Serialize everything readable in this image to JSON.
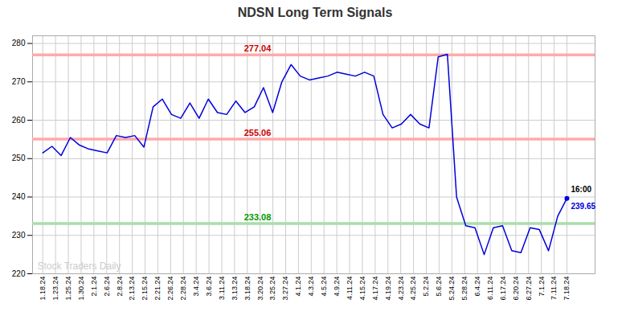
{
  "chart_data": {
    "type": "line",
    "title": "NDSN Long Term Signals",
    "title_color": "#333333",
    "color": "#0000dd",
    "marker": "last",
    "grid": true,
    "x": [
      0,
      0.7193,
      1.4386,
      2.1579,
      2.8772,
      3.5965,
      4.3158,
      5.0351,
      5.7544,
      6.4737,
      7.193,
      7.9123,
      8.6316,
      9.3509,
      10.0702,
      10.7895,
      11.5088,
      12.2281,
      12.9474,
      13.6667,
      14.386,
      15.1053,
      15.8246,
      16.5439,
      17.2632,
      17.9825,
      18.7018,
      19.4211,
      20.1404,
      20.8596,
      21.5789,
      22.2982,
      23.0175,
      23.7368,
      24.4561,
      25.1754,
      25.8947,
      26.614,
      27.3333,
      28.0526,
      28.7719,
      29.4912,
      30.2105,
      30.9298,
      31.6491,
      32.3684,
      33.0877,
      33.807,
      34.5263,
      35.2456,
      35.9649,
      36.6842,
      37.4035,
      38.1228,
      38.8421,
      39.5614,
      40.2807,
      41
    ],
    "values": [
      251.5,
      253.2,
      250.8,
      255.5,
      253.5,
      252.5,
      252.0,
      251.5,
      256.0,
      255.5,
      256.0,
      253.0,
      263.5,
      265.5,
      261.5,
      260.5,
      264.5,
      260.5,
      265.5,
      262.0,
      261.5,
      265.0,
      262.0,
      263.5,
      268.5,
      262.0,
      270.0,
      274.5,
      271.5,
      270.5,
      271.0,
      271.5,
      272.5,
      272.0,
      271.5,
      272.5,
      271.5,
      261.5,
      258.0,
      259.0,
      261.5,
      259.0,
      258.0,
      276.5,
      277.2,
      240.0,
      232.5,
      232.0,
      225.0,
      232.0,
      232.5,
      226.0,
      225.5,
      232.0,
      231.5,
      226.0,
      235.0,
      239.65
    ],
    "xlim": [
      -0.8,
      43.2
    ],
    "xticks": [
      {
        "value": 0,
        "label": "1.18.24"
      },
      {
        "value": 1,
        "label": "1.23.24"
      },
      {
        "value": 2,
        "label": "1.25.24"
      },
      {
        "value": 3,
        "label": "1.30.24"
      },
      {
        "value": 4,
        "label": "2.1.24"
      },
      {
        "value": 5,
        "label": "2.6.24"
      },
      {
        "value": 6,
        "label": "2.8.24"
      },
      {
        "value": 7,
        "label": "2.13.24"
      },
      {
        "value": 8,
        "label": "2.15.24"
      },
      {
        "value": 9,
        "label": "2.21.24"
      },
      {
        "value": 10,
        "label": "2.26.24"
      },
      {
        "value": 11,
        "label": "2.28.24"
      },
      {
        "value": 12,
        "label": "3.4.24"
      },
      {
        "value": 13,
        "label": "3.6.24"
      },
      {
        "value": 14,
        "label": "3.11.24"
      },
      {
        "value": 15,
        "label": "3.13.24"
      },
      {
        "value": 16,
        "label": "3.18.24"
      },
      {
        "value": 17,
        "label": "3.20.24"
      },
      {
        "value": 18,
        "label": "3.25.24"
      },
      {
        "value": 19,
        "label": "3.27.24"
      },
      {
        "value": 20,
        "label": "4.1.24"
      },
      {
        "value": 21,
        "label": "4.3.24"
      },
      {
        "value": 22,
        "label": "4.5.24"
      },
      {
        "value": 23,
        "label": "4.9.24"
      },
      {
        "value": 24,
        "label": "4.11.24"
      },
      {
        "value": 25,
        "label": "4.15.24"
      },
      {
        "value": 26,
        "label": "4.17.24"
      },
      {
        "value": 27,
        "label": "4.19.24"
      },
      {
        "value": 28,
        "label": "4.23.24"
      },
      {
        "value": 29,
        "label": "4.25.24"
      },
      {
        "value": 30,
        "label": "5.2.24"
      },
      {
        "value": 31,
        "label": "5.6.24"
      },
      {
        "value": 32,
        "label": "5.24.24"
      },
      {
        "value": 33,
        "label": "5.28.24"
      },
      {
        "value": 34,
        "label": "6.4.24"
      },
      {
        "value": 35,
        "label": "6.11.24"
      },
      {
        "value": 36,
        "label": "6.17.24"
      },
      {
        "value": 37,
        "label": "6.20.24"
      },
      {
        "value": 38,
        "label": "6.27.24"
      },
      {
        "value": 39,
        "label": "7.1.24"
      },
      {
        "value": 40,
        "label": "7.11.24"
      },
      {
        "value": 41,
        "label": "7.18.24"
      }
    ],
    "ylim": [
      220,
      282
    ],
    "yticks": [
      220,
      230,
      240,
      250,
      260,
      270,
      280
    ],
    "reference_lines": [
      {
        "value": 277.04,
        "label": "277.04",
        "color": "#ffaaaa",
        "label_color": "#cc0000"
      },
      {
        "value": 255.06,
        "label": "255.06",
        "color": "#ffaaaa",
        "label_color": "#cc0000"
      },
      {
        "value": 233.08,
        "label": "233.08",
        "color": "#aaddaa",
        "label_color": "#009900"
      }
    ],
    "annotations": [
      {
        "text": "16:00",
        "color": "#000000"
      },
      {
        "text": "239.65",
        "color": "#0000dd"
      }
    ],
    "watermark": "Stock Traders Daily",
    "watermark_color": "#cccccc"
  }
}
